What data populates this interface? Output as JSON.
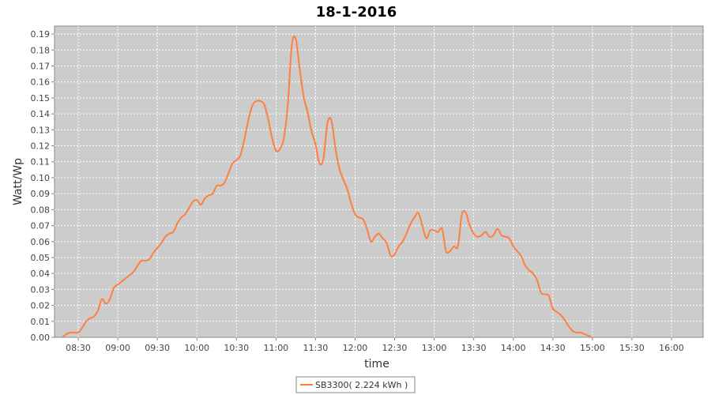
{
  "chart_data": {
    "type": "line",
    "title": "18-1-2016",
    "xlabel": "time",
    "ylabel": "Watt/Wp",
    "xlim": [
      "08:12",
      "16:24"
    ],
    "ylim": [
      0,
      0.195
    ],
    "x_ticks": [
      "08:30",
      "09:00",
      "09:30",
      "10:00",
      "10:30",
      "11:00",
      "11:30",
      "12:00",
      "12:30",
      "13:00",
      "13:30",
      "14:00",
      "14:30",
      "15:00",
      "15:30",
      "16:00"
    ],
    "y_ticks": [
      "0.00",
      "0.01",
      "0.02",
      "0.03",
      "0.04",
      "0.05",
      "0.06",
      "0.07",
      "0.08",
      "0.09",
      "0.10",
      "0.11",
      "0.12",
      "0.13",
      "0.14",
      "0.15",
      "0.16",
      "0.17",
      "0.18",
      "0.19"
    ],
    "grid": true,
    "legend_position": "bottom-center",
    "series": [
      {
        "name": "SB3300( 2.224 kWh )",
        "color": "#FF7F3F",
        "points": [
          [
            "08:18",
            0.0
          ],
          [
            "08:21",
            0.002
          ],
          [
            "08:24",
            0.003
          ],
          [
            "08:27",
            0.003
          ],
          [
            "08:30",
            0.003
          ],
          [
            "08:33",
            0.006
          ],
          [
            "08:36",
            0.01
          ],
          [
            "08:39",
            0.012
          ],
          [
            "08:42",
            0.013
          ],
          [
            "08:45",
            0.017
          ],
          [
            "08:48",
            0.024
          ],
          [
            "08:51",
            0.021
          ],
          [
            "08:54",
            0.024
          ],
          [
            "08:57",
            0.031
          ],
          [
            "09:00",
            0.033
          ],
          [
            "09:03",
            0.035
          ],
          [
            "09:06",
            0.037
          ],
          [
            "09:09",
            0.039
          ],
          [
            "09:12",
            0.041
          ],
          [
            "09:15",
            0.045
          ],
          [
            "09:18",
            0.048
          ],
          [
            "09:21",
            0.048
          ],
          [
            "09:24",
            0.049
          ],
          [
            "09:27",
            0.053
          ],
          [
            "09:30",
            0.056
          ],
          [
            "09:33",
            0.059
          ],
          [
            "09:36",
            0.063
          ],
          [
            "09:39",
            0.065
          ],
          [
            "09:42",
            0.066
          ],
          [
            "09:45",
            0.071
          ],
          [
            "09:48",
            0.075
          ],
          [
            "09:51",
            0.077
          ],
          [
            "09:54",
            0.081
          ],
          [
            "09:57",
            0.085
          ],
          [
            "10:00",
            0.086
          ],
          [
            "10:03",
            0.083
          ],
          [
            "10:06",
            0.087
          ],
          [
            "10:09",
            0.089
          ],
          [
            "10:12",
            0.09
          ],
          [
            "10:15",
            0.095
          ],
          [
            "10:18",
            0.095
          ],
          [
            "10:21",
            0.097
          ],
          [
            "10:24",
            0.103
          ],
          [
            "10:27",
            0.109
          ],
          [
            "10:30",
            0.111
          ],
          [
            "10:33",
            0.114
          ],
          [
            "10:36",
            0.124
          ],
          [
            "10:39",
            0.136
          ],
          [
            "10:42",
            0.145
          ],
          [
            "10:45",
            0.148
          ],
          [
            "10:48",
            0.148
          ],
          [
            "10:51",
            0.146
          ],
          [
            "10:54",
            0.137
          ],
          [
            "10:57",
            0.125
          ],
          [
            "11:00",
            0.117
          ],
          [
            "11:03",
            0.118
          ],
          [
            "11:06",
            0.125
          ],
          [
            "11:09",
            0.146
          ],
          [
            "11:12",
            0.183
          ],
          [
            "11:15",
            0.187
          ],
          [
            "11:18",
            0.168
          ],
          [
            "11:21",
            0.151
          ],
          [
            "11:24",
            0.141
          ],
          [
            "11:27",
            0.129
          ],
          [
            "11:30",
            0.121
          ],
          [
            "11:33",
            0.109
          ],
          [
            "11:36",
            0.112
          ],
          [
            "11:39",
            0.134
          ],
          [
            "11:42",
            0.136
          ],
          [
            "11:45",
            0.119
          ],
          [
            "11:48",
            0.106
          ],
          [
            "11:51",
            0.099
          ],
          [
            "11:54",
            0.093
          ],
          [
            "11:57",
            0.084
          ],
          [
            "12:00",
            0.077
          ],
          [
            "12:03",
            0.075
          ],
          [
            "12:06",
            0.074
          ],
          [
            "12:09",
            0.068
          ],
          [
            "12:12",
            0.06
          ],
          [
            "12:15",
            0.063
          ],
          [
            "12:18",
            0.065
          ],
          [
            "12:21",
            0.062
          ],
          [
            "12:24",
            0.059
          ],
          [
            "12:27",
            0.051
          ],
          [
            "12:30",
            0.052
          ],
          [
            "12:33",
            0.057
          ],
          [
            "12:36",
            0.06
          ],
          [
            "12:39",
            0.065
          ],
          [
            "12:42",
            0.071
          ],
          [
            "12:45",
            0.075
          ],
          [
            "12:48",
            0.078
          ],
          [
            "12:51",
            0.07
          ],
          [
            "12:54",
            0.062
          ],
          [
            "12:57",
            0.067
          ],
          [
            "13:00",
            0.067
          ],
          [
            "13:03",
            0.066
          ],
          [
            "13:06",
            0.068
          ],
          [
            "13:09",
            0.054
          ],
          [
            "13:12",
            0.054
          ],
          [
            "13:15",
            0.057
          ],
          [
            "13:18",
            0.057
          ],
          [
            "13:21",
            0.077
          ],
          [
            "13:24",
            0.078
          ],
          [
            "13:27",
            0.07
          ],
          [
            "13:30",
            0.065
          ],
          [
            "13:33",
            0.063
          ],
          [
            "13:36",
            0.064
          ],
          [
            "13:39",
            0.066
          ],
          [
            "13:42",
            0.063
          ],
          [
            "13:45",
            0.064
          ],
          [
            "13:48",
            0.068
          ],
          [
            "13:51",
            0.064
          ],
          [
            "13:54",
            0.063
          ],
          [
            "13:57",
            0.062
          ],
          [
            "14:00",
            0.057
          ],
          [
            "14:03",
            0.054
          ],
          [
            "14:06",
            0.051
          ],
          [
            "14:09",
            0.045
          ],
          [
            "14:12",
            0.042
          ],
          [
            "14:15",
            0.04
          ],
          [
            "14:18",
            0.036
          ],
          [
            "14:21",
            0.028
          ],
          [
            "14:24",
            0.027
          ],
          [
            "14:27",
            0.026
          ],
          [
            "14:30",
            0.018
          ],
          [
            "14:33",
            0.016
          ],
          [
            "14:36",
            0.014
          ],
          [
            "14:39",
            0.011
          ],
          [
            "14:42",
            0.007
          ],
          [
            "14:45",
            0.004
          ],
          [
            "14:48",
            0.003
          ],
          [
            "14:51",
            0.003
          ],
          [
            "14:54",
            0.002
          ],
          [
            "14:57",
            0.001
          ],
          [
            "15:00",
            0.0
          ]
        ]
      }
    ]
  }
}
